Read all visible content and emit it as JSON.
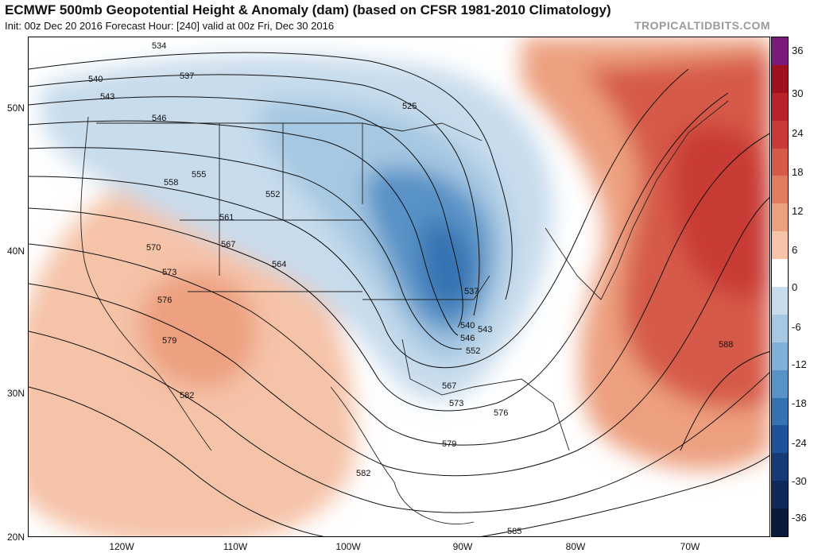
{
  "header": {
    "title": "ECMWF 500mb Geopotential Height & Anomaly (dam) (based on CFSR 1981-2010 Climatology)",
    "subtitle": "Init: 00z Dec 20 2016   Forecast Hour: [240]   valid at 00z Fri, Dec 30 2016",
    "credit": "TROPICALTIDBITS.COM"
  },
  "axes": {
    "lat_labels": [
      "50N",
      "40N",
      "30N",
      "20N"
    ],
    "lon_labels": [
      "120W",
      "110W",
      "100W",
      "90W",
      "80W",
      "70W"
    ]
  },
  "colorbar": {
    "labels": [
      "36",
      "30",
      "24",
      "18",
      "12",
      "6",
      "0",
      "-6",
      "-12",
      "-18",
      "-24",
      "-30",
      "-36"
    ],
    "colors": [
      "#7a1a7a",
      "#a0101e",
      "#b8242a",
      "#c93a36",
      "#d65a48",
      "#e27c60",
      "#eda080",
      "#f5c3a8",
      "#ffffff",
      "#c8dcec",
      "#a6c8e2",
      "#80b0d6",
      "#5892c6",
      "#3572b2",
      "#1f5298",
      "#163c78",
      "#0f2a58",
      "#0a1a3a"
    ]
  },
  "contour_labels": [
    "534",
    "537",
    "540",
    "543",
    "546",
    "555",
    "558",
    "552",
    "561",
    "567",
    "564",
    "570",
    "573",
    "576",
    "579",
    "582",
    "525",
    "537",
    "540",
    "543",
    "546",
    "552",
    "567",
    "573",
    "576",
    "579",
    "582",
    "588",
    "585"
  ]
}
